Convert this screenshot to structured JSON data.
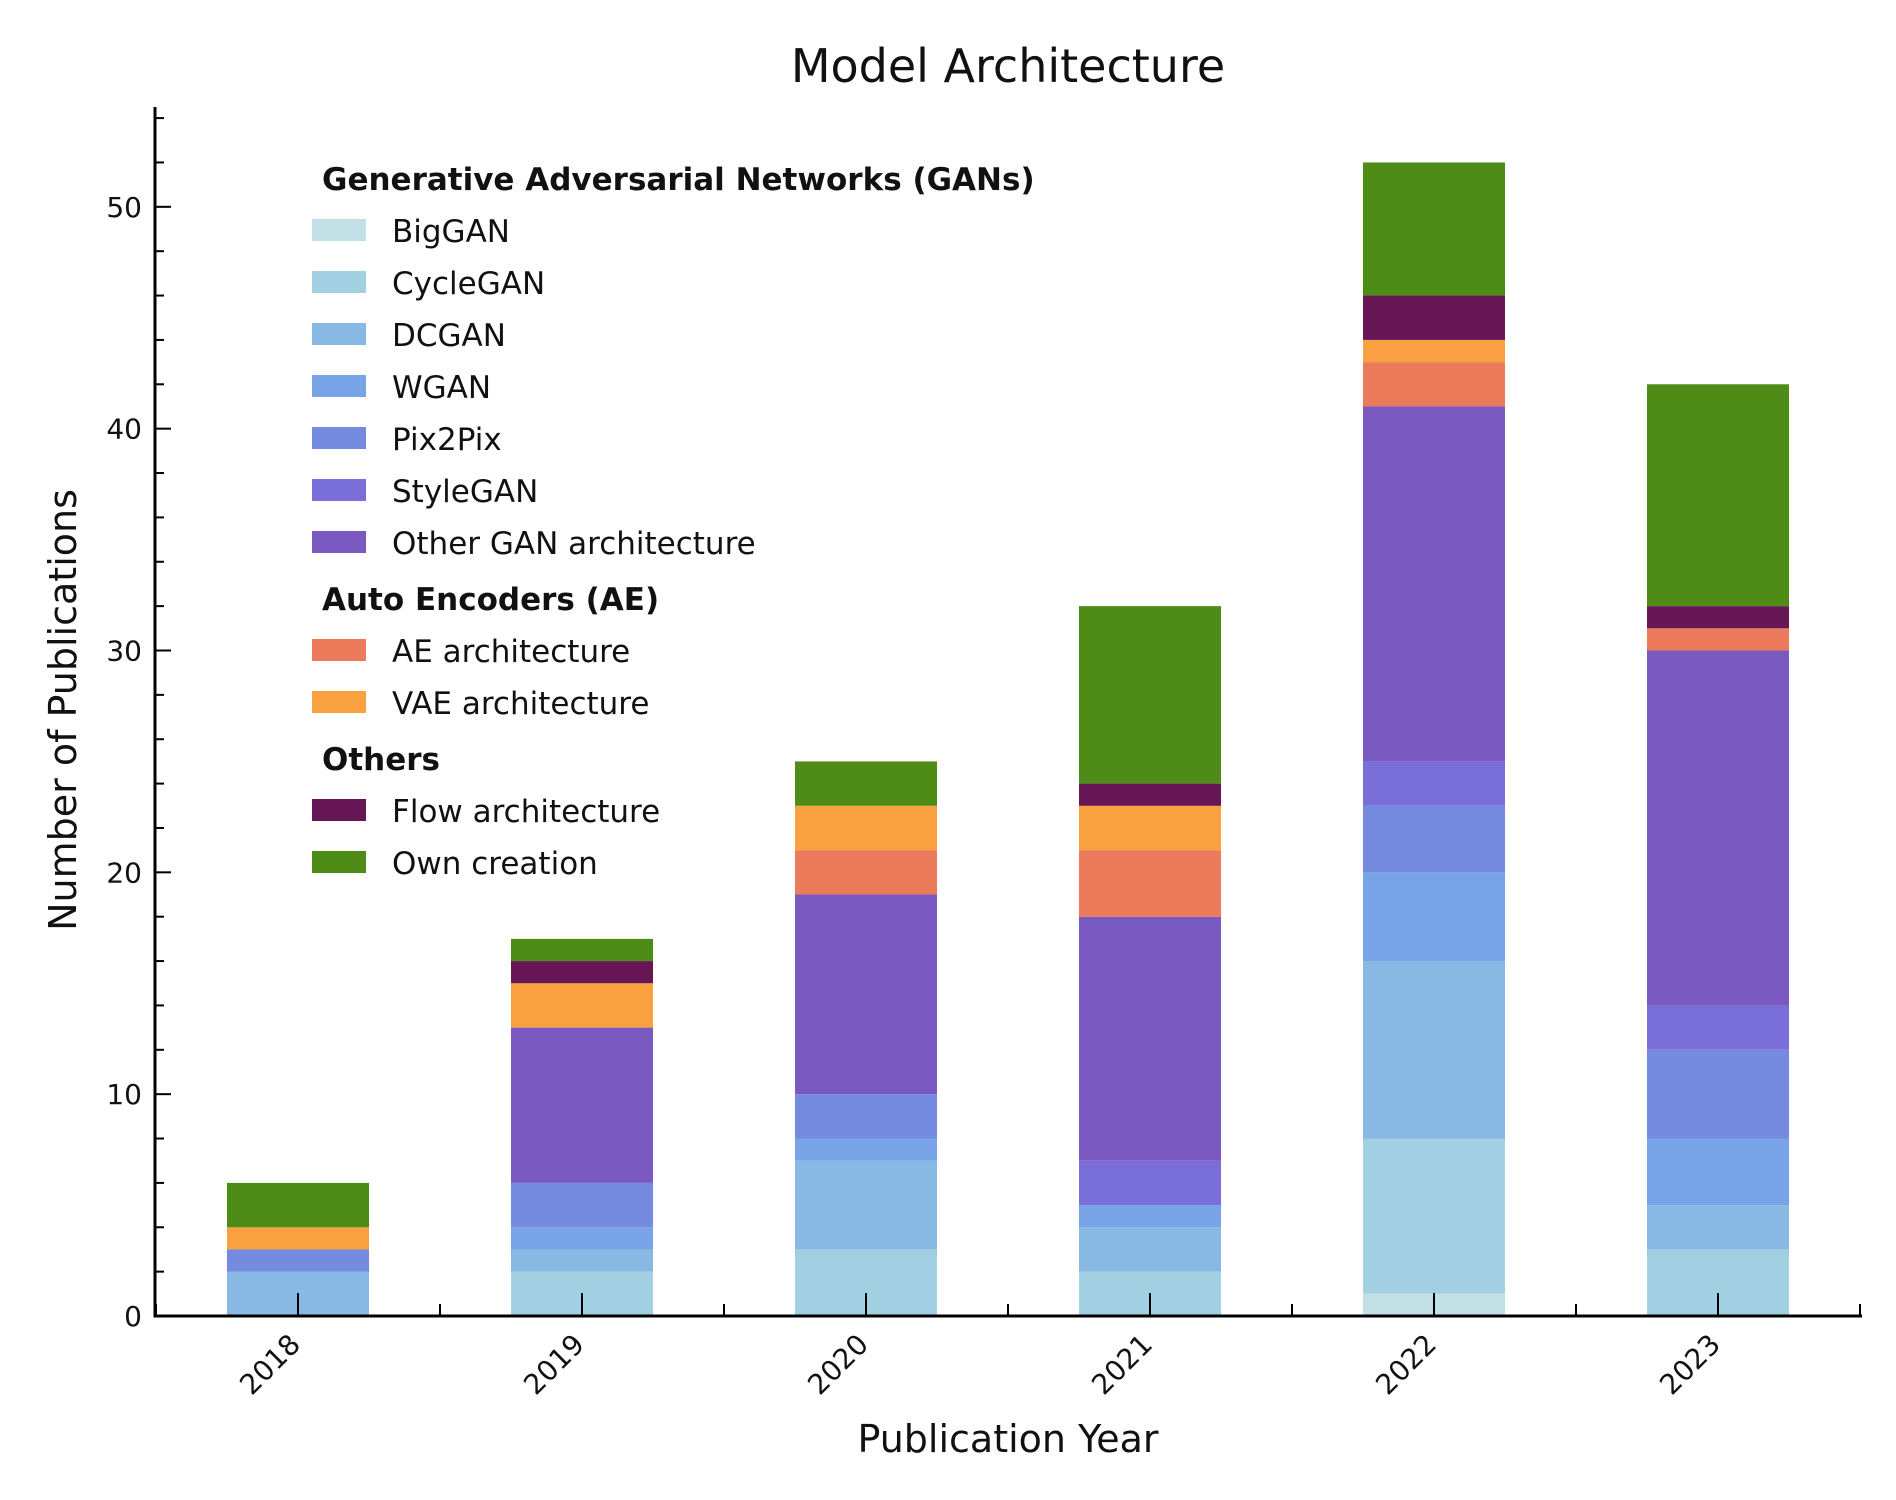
{
  "chart_data": {
    "type": "bar",
    "stacked": true,
    "title": "Model Architecture",
    "xlabel": "Publication Year",
    "ylabel": "Number of Publications",
    "ylim": [
      0,
      54.5
    ],
    "yticks": [
      0,
      10,
      20,
      30,
      40,
      50
    ],
    "grid": false,
    "legend_position": "top-left",
    "categories": [
      "2018",
      "2019",
      "2020",
      "2021",
      "2022",
      "2023"
    ],
    "series": [
      {
        "name": "BigGAN",
        "group": "Generative Adversarial Networks (GANs)",
        "color": "#c2e0e6",
        "values": [
          0,
          0,
          0,
          0,
          1,
          0
        ]
      },
      {
        "name": "CycleGAN",
        "group": "Generative Adversarial Networks (GANs)",
        "color": "#a3cfe2",
        "values": [
          0,
          2,
          3,
          2,
          7,
          3
        ]
      },
      {
        "name": "DCGAN",
        "group": "Generative Adversarial Networks (GANs)",
        "color": "#88b9e4",
        "values": [
          2,
          1,
          4,
          2,
          8,
          2
        ]
      },
      {
        "name": "WGAN",
        "group": "Generative Adversarial Networks (GANs)",
        "color": "#78a3e6",
        "values": [
          0,
          1,
          1,
          1,
          4,
          3
        ]
      },
      {
        "name": "Pix2Pix",
        "group": "Generative Adversarial Networks (GANs)",
        "color": "#748be0",
        "values": [
          1,
          2,
          2,
          0,
          3,
          4
        ]
      },
      {
        "name": "StyleGAN",
        "group": "Generative Adversarial Networks (GANs)",
        "color": "#7a6fd8",
        "values": [
          0,
          0,
          0,
          2,
          2,
          2
        ]
      },
      {
        "name": "Other GAN architecture",
        "group": "Generative Adversarial Networks (GANs)",
        "color": "#7a59c1",
        "values": [
          0,
          7,
          9,
          11,
          16,
          16
        ]
      },
      {
        "name": "AE architecture",
        "group": "Auto Encoders (AE)",
        "color": "#ec7b5b",
        "values": [
          0,
          0,
          2,
          3,
          2,
          1
        ]
      },
      {
        "name": "VAE architecture",
        "group": "Auto Encoders (AE)",
        "color": "#f9a041",
        "values": [
          1,
          2,
          2,
          2,
          1,
          0
        ]
      },
      {
        "name": "Flow architecture",
        "group": "Others",
        "color": "#661654",
        "values": [
          0,
          1,
          0,
          1,
          2,
          1
        ]
      },
      {
        "name": "Own creation",
        "group": "Others",
        "color": "#4e8c17",
        "values": [
          2,
          1,
          2,
          8,
          6,
          10
        ]
      }
    ],
    "legend_groups": [
      "Generative Adversarial Networks (GANs)",
      "Auto Encoders (AE)",
      "Others"
    ]
  }
}
